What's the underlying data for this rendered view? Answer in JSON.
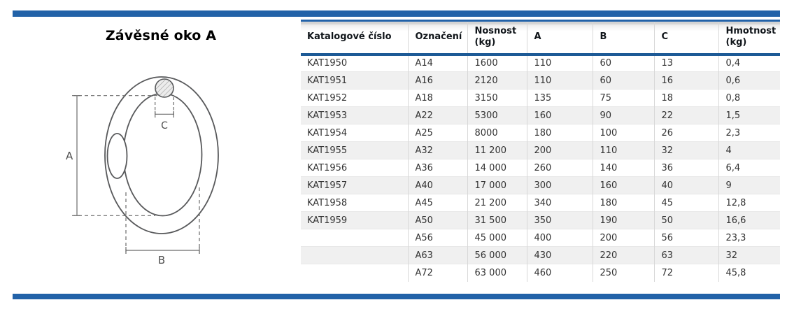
{
  "title": "Závěsné oko A",
  "colors": {
    "accent_blue": "#2262a8",
    "table_rule_blue": "#1d5a96",
    "row_shade": "#f0f0f0",
    "diagram_stroke": "#58595b"
  },
  "diagram": {
    "description": "dimension-drawing-of-suspension-eye",
    "labels": {
      "a": "A",
      "b": "B",
      "c": "C"
    }
  },
  "table": {
    "columns": [
      "Katalogové číslo",
      "Označení",
      "Nosnost (kg)",
      "A",
      "B",
      "C",
      "Hmotnost (kg)"
    ],
    "rows": [
      [
        "KAT1950",
        "A14",
        "1600",
        "110",
        "60",
        "13",
        "0,4"
      ],
      [
        "KAT1951",
        "A16",
        "2120",
        "110",
        "60",
        "16",
        "0,6"
      ],
      [
        "KAT1952",
        "A18",
        "3150",
        "135",
        "75",
        "18",
        "0,8"
      ],
      [
        "KAT1953",
        "A22",
        "5300",
        "160",
        "90",
        "22",
        "1,5"
      ],
      [
        "KAT1954",
        "A25",
        "8000",
        "180",
        "100",
        "26",
        "2,3"
      ],
      [
        "KAT1955",
        "A32",
        "11 200",
        "200",
        "110",
        "32",
        "4"
      ],
      [
        "KAT1956",
        "A36",
        "14 000",
        "260",
        "140",
        "36",
        "6,4"
      ],
      [
        "KAT1957",
        "A40",
        "17 000",
        "300",
        "160",
        "40",
        "9"
      ],
      [
        "KAT1958",
        "A45",
        "21 200",
        "340",
        "180",
        "45",
        "12,8"
      ],
      [
        "KAT1959",
        "A50",
        "31 500",
        "350",
        "190",
        "50",
        "16,6"
      ],
      [
        "",
        "A56",
        "45 000",
        "400",
        "200",
        "56",
        "23,3"
      ],
      [
        "",
        "A63",
        "56 000",
        "430",
        "220",
        "63",
        "32"
      ],
      [
        "",
        "A72",
        "63 000",
        "460",
        "250",
        "72",
        "45,8"
      ]
    ]
  }
}
